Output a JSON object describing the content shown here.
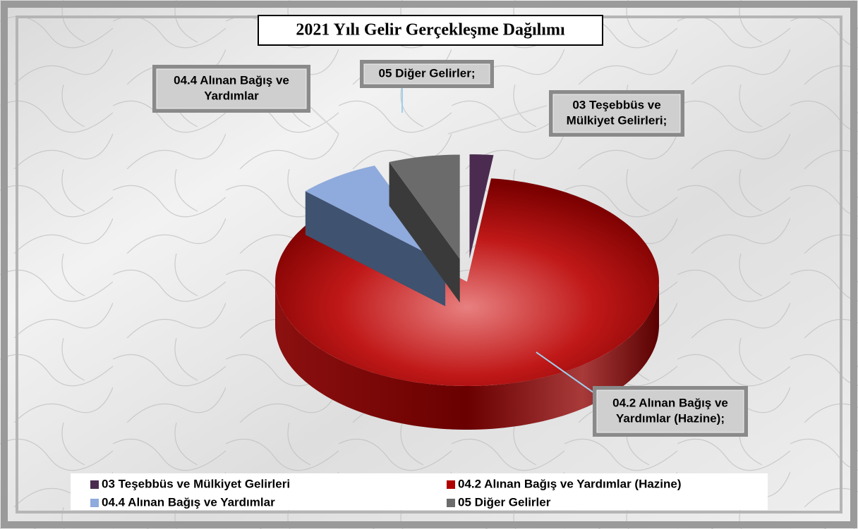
{
  "chart_data": {
    "type": "pie3d",
    "title": "2021 Yılı Gelir Gerçekleşme Dağılımı",
    "categories": [
      "03 Teşebbüs ve Mülkiyet Gelirleri",
      "04.2 Alınan Bağış ve Yardımlar (Hazine)",
      "04.4 Alınan Bağış ve Yardımlar",
      "05 Diğer Gelirler"
    ],
    "labels": [
      [
        "03 Teşebbüs ve",
        "Mülkiyet Gelirleri;"
      ],
      [
        "04.2 Alınan Bağış ve",
        "Yardımlar (Hazine);"
      ],
      [
        "04.4 Alınan Bağış ve",
        "Yardımlar"
      ],
      [
        "05 Diğer Gelirler;"
      ]
    ],
    "values": [
      2,
      85,
      7,
      6
    ],
    "colors": [
      "#4b2c50",
      "#b00000",
      "#8faadc",
      "#6b6b6b"
    ],
    "legend": "bottom"
  }
}
